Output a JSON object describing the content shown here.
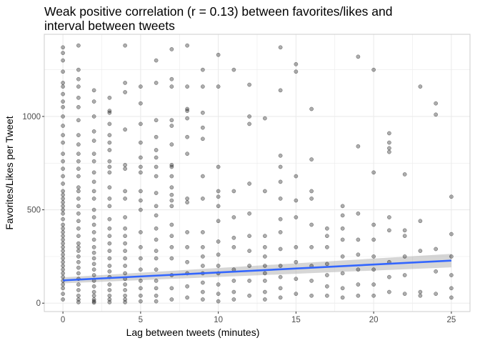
{
  "chart_data": {
    "type": "scatter",
    "title": "Weak positive correlation (r = 0.13) between favorites/likes and\n interval between tweets",
    "xlabel": "Lag between tweets (minutes)",
    "ylabel": "Favorites/Likes per Tweet",
    "xlim": [
      -1.2,
      26.2
    ],
    "ylim": [
      -45,
      1440
    ],
    "x_ticks": [
      0,
      5,
      10,
      15,
      20,
      25
    ],
    "y_ticks": [
      0,
      500,
      1000
    ],
    "grid": true,
    "legend": "none",
    "colors": {
      "points": "#000000",
      "trend_line": "#3366FF",
      "confidence_band": "#999999",
      "grid": "#ebebeb",
      "panel_border": "#cccccc"
    },
    "series": [
      {
        "x": [
          0,
          0,
          0,
          0,
          0,
          0,
          0,
          0,
          0,
          0,
          0,
          0,
          0,
          0,
          0,
          0,
          0,
          0,
          0,
          0,
          0,
          0,
          0,
          0,
          0,
          0,
          0,
          0,
          0,
          0,
          0,
          0,
          0,
          0,
          0,
          0,
          0,
          0,
          0,
          0,
          0,
          0,
          0,
          0,
          0,
          0,
          1,
          1,
          1,
          1,
          1,
          1,
          1,
          1,
          1,
          1,
          1,
          1,
          1,
          1,
          1,
          1,
          1,
          1,
          1,
          1,
          1,
          1,
          1,
          1,
          1,
          1,
          1,
          1,
          1,
          1,
          1,
          1,
          1,
          1,
          2,
          2,
          2,
          2,
          2,
          2,
          2,
          2,
          2,
          2,
          2,
          2,
          2,
          2,
          2,
          2,
          2,
          2,
          2,
          2,
          2,
          2,
          2,
          2,
          2,
          2,
          2,
          2,
          2,
          3,
          3,
          3,
          3,
          3,
          3,
          3,
          3,
          3,
          3,
          3,
          3,
          3,
          3,
          3,
          3,
          3,
          3,
          3,
          3,
          3,
          3,
          3,
          3,
          3,
          3,
          3,
          4,
          4,
          4,
          4,
          4,
          4,
          4,
          4,
          4,
          4,
          4,
          4,
          4,
          4,
          4,
          4,
          4,
          4,
          4,
          4,
          4,
          4,
          5,
          5,
          5,
          5,
          5,
          5,
          5,
          5,
          5,
          5,
          5,
          5,
          5,
          5,
          5,
          5,
          5,
          5,
          6,
          6,
          6,
          6,
          6,
          6,
          6,
          6,
          6,
          6,
          6,
          6,
          6,
          6,
          6,
          6,
          6,
          6,
          6,
          6,
          7,
          7,
          7,
          7,
          7,
          7,
          7,
          7,
          7,
          7,
          7,
          7,
          7,
          7,
          7,
          7,
          7,
          7,
          7,
          7,
          8,
          8,
          8,
          8,
          8,
          8,
          8,
          8,
          8,
          8,
          8,
          8,
          8,
          8,
          8,
          9,
          9,
          9,
          9,
          9,
          9,
          9,
          9,
          9,
          9,
          9,
          9,
          9,
          9,
          9,
          10,
          10,
          10,
          10,
          10,
          10,
          10,
          10,
          10,
          10,
          10,
          10,
          10,
          10,
          11,
          11,
          11,
          11,
          11,
          11,
          11,
          11,
          11,
          12,
          12,
          12,
          12,
          12,
          12,
          12,
          12,
          12,
          12,
          13,
          13,
          13,
          13,
          13,
          13,
          13,
          13,
          13,
          13,
          14,
          14,
          14,
          14,
          14,
          14,
          14,
          14,
          14,
          14,
          14,
          14,
          14,
          15,
          15,
          15,
          15,
          15,
          15,
          15,
          15,
          15,
          16,
          16,
          16,
          16,
          16,
          16,
          16,
          16,
          16,
          17,
          17,
          17,
          17,
          17,
          17,
          17,
          18,
          18,
          18,
          18,
          18,
          18,
          18,
          18,
          19,
          19,
          19,
          19,
          19,
          19,
          19,
          19,
          20,
          20,
          20,
          20,
          20,
          20,
          20,
          20,
          21,
          21,
          21,
          21,
          21,
          21,
          21,
          21,
          21,
          22,
          22,
          22,
          22,
          22,
          22,
          23,
          23,
          23,
          23,
          23,
          24,
          24,
          24,
          24,
          24,
          25,
          25,
          25,
          25,
          25,
          25
        ],
        "y": [
          1370,
          1340,
          1300,
          1240,
          1180,
          1160,
          1120,
          1080,
          1050,
          1000,
          950,
          900,
          860,
          800,
          760,
          720,
          680,
          640,
          600,
          580,
          560,
          540,
          520,
          500,
          480,
          450,
          420,
          400,
          380,
          360,
          340,
          320,
          300,
          280,
          260,
          240,
          220,
          200,
          180,
          160,
          140,
          120,
          100,
          80,
          50,
          20,
          1380,
          1250,
          1200,
          1160,
          1100,
          1050,
          980,
          900,
          850,
          800,
          760,
          720,
          680,
          620,
          600,
          560,
          520,
          480,
          440,
          400,
          360,
          320,
          300,
          280,
          250,
          220,
          190,
          160,
          130,
          100,
          70,
          40,
          20,
          5,
          1140,
          1080,
          1000,
          920,
          870,
          800,
          760,
          700,
          650,
          600,
          560,
          500,
          460,
          420,
          380,
          340,
          300,
          270,
          240,
          210,
          180,
          150,
          120,
          90,
          60,
          40,
          20,
          10,
          3,
          1100,
          1030,
          1020,
          960,
          900,
          860,
          820,
          760,
          730,
          700,
          620,
          560,
          520,
          450,
          400,
          360,
          320,
          280,
          240,
          200,
          170,
          140,
          100,
          70,
          40,
          20,
          5,
          1380,
          1180,
          1130,
          930,
          740,
          720,
          600,
          560,
          460,
          400,
          360,
          320,
          280,
          240,
          200,
          160,
          130,
          100,
          70,
          40,
          20,
          5,
          1160,
          1070,
          960,
          860,
          780,
          730,
          700,
          600,
          550,
          500,
          380,
          300,
          240,
          180,
          120,
          80,
          40,
          10,
          1300,
          1180,
          980,
          890,
          820,
          780,
          730,
          680,
          590,
          520,
          470,
          400,
          340,
          280,
          240,
          180,
          120,
          80,
          40,
          10,
          1360,
          1200,
          1160,
          980,
          950,
          850,
          740,
          730,
          680,
          620,
          580,
          550,
          520,
          420,
          360,
          300,
          240,
          150,
          80,
          20,
          1380,
          1160,
          1040,
          1030,
          990,
          890,
          800,
          560,
          540,
          380,
          300,
          220,
          160,
          90,
          30,
          1250,
          1160,
          1020,
          940,
          880,
          680,
          560,
          380,
          300,
          250,
          200,
          160,
          110,
          60,
          20,
          1330,
          1160,
          730,
          600,
          570,
          520,
          440,
          330,
          260,
          200,
          160,
          100,
          50,
          10,
          1250,
          600,
          460,
          350,
          300,
          180,
          120,
          60,
          20,
          1170,
          1000,
          960,
          640,
          480,
          360,
          280,
          200,
          120,
          40,
          990,
          600,
          360,
          300,
          250,
          200,
          160,
          120,
          60,
          20,
          1370,
          1140,
          790,
          730,
          650,
          560,
          450,
          380,
          290,
          200,
          140,
          80,
          30,
          1280,
          1240,
          680,
          550,
          460,
          300,
          220,
          130,
          50,
          1040,
          770,
          600,
          560,
          420,
          300,
          200,
          120,
          40,
          400,
          360,
          300,
          210,
          150,
          90,
          40,
          520,
          470,
          400,
          340,
          250,
          160,
          80,
          30,
          1320,
          840,
          480,
          340,
          260,
          180,
          100,
          40,
          1250,
          700,
          420,
          340,
          250,
          180,
          100,
          40,
          910,
          860,
          830,
          810,
          460,
          390,
          220,
          140,
          60,
          690,
          390,
          360,
          250,
          150,
          50,
          1160,
          440,
          280,
          60,
          40,
          1070,
          1010,
          290,
          170,
          50,
          570,
          370,
          250,
          150,
          80,
          30
        ]
      }
    ],
    "trend_line": {
      "x": [
        0,
        25
      ],
      "y": [
        122,
        228
      ],
      "se_lower": [
        106,
        192
      ],
      "se_upper": [
        138,
        264
      ]
    }
  }
}
